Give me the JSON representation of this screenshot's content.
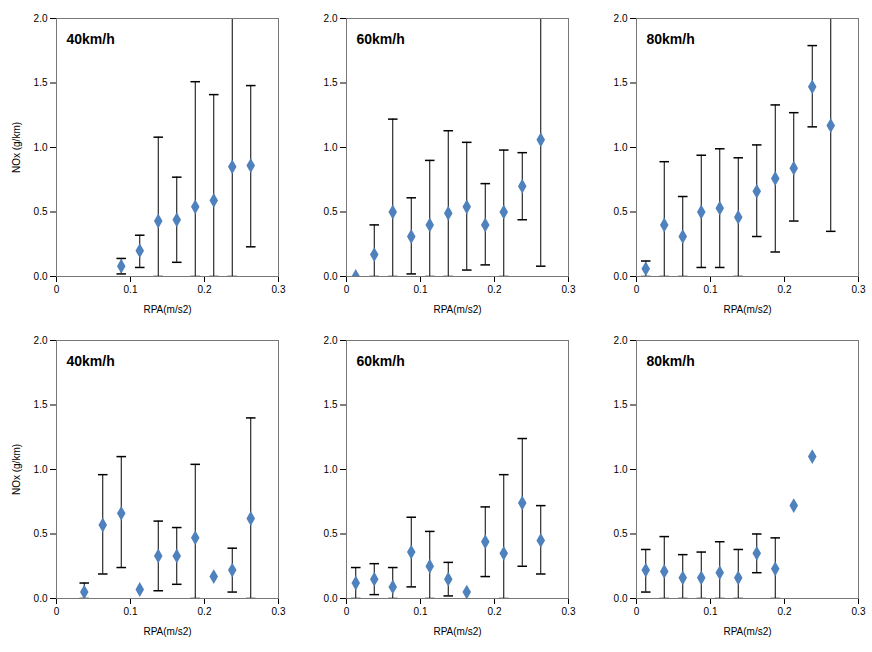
{
  "chart_data": [
    {
      "type": "scatter",
      "title": "40km/h",
      "xlabel": "RPA(m/s2)",
      "ylabel": "NOx (g/km)",
      "color": "#4f81bd",
      "marker": "diamond",
      "xlim": [
        0,
        0.3
      ],
      "xticks": [
        0,
        0.1,
        0.2,
        0.3
      ],
      "ylim": [
        0,
        2
      ],
      "yticks": [
        {
          "value": 0,
          "label": "0.0"
        },
        {
          "value": 0.5,
          "label": "0.5"
        },
        {
          "value": 1,
          "label": "1.0"
        },
        {
          "value": 1.5,
          "label": "1.5"
        },
        {
          "value": 2,
          "label": "2.0"
        }
      ],
      "x": [
        0.0875,
        0.1125,
        0.1375,
        0.1625,
        0.1875,
        0.2125,
        0.2375,
        0.2625
      ],
      "values": [
        0.08,
        0.2,
        0.43,
        0.44,
        0.54,
        0.59,
        0.85,
        0.86
      ],
      "error_low": [
        0.02,
        0.07,
        0,
        0.11,
        0,
        0,
        0,
        0.23
      ],
      "error_high": [
        0.14,
        0.32,
        1.08,
        0.77,
        1.51,
        1.41,
        2.2,
        1.48
      ]
    },
    {
      "type": "scatter",
      "title": "60km/h",
      "xlabel": "RPA(m/s2)",
      "color": "#4f81bd",
      "marker": "diamond",
      "xlim": [
        0,
        0.3
      ],
      "xticks": [
        0,
        0.1,
        0.2,
        0.3
      ],
      "ylim": [
        0,
        2
      ],
      "yticks": [
        {
          "value": 0,
          "label": "0.0"
        },
        {
          "value": 0.5,
          "label": "0.5"
        },
        {
          "value": 1,
          "label": "1.0"
        },
        {
          "value": 1.5,
          "label": "1.5"
        },
        {
          "value": 2,
          "label": "2.0"
        }
      ],
      "x": [
        0.0125,
        0.0375,
        0.0625,
        0.0875,
        0.1125,
        0.1375,
        0.1625,
        0.1875,
        0.2125,
        0.2375,
        0.2625
      ],
      "values": [
        0.0,
        0.17,
        0.5,
        0.31,
        0.4,
        0.49,
        0.54,
        0.4,
        0.5,
        0.7,
        1.06
      ],
      "error_low": [
        null,
        0,
        0,
        0.02,
        0,
        0,
        0.05,
        0.09,
        0,
        0.44,
        0.08
      ],
      "error_high": [
        null,
        0.4,
        1.22,
        0.61,
        0.9,
        1.13,
        1.04,
        0.72,
        0.98,
        0.96,
        2.2
      ]
    },
    {
      "type": "scatter",
      "title": "80km/h",
      "xlabel": "RPA(m/s2)",
      "color": "#4f81bd",
      "marker": "diamond",
      "xlim": [
        0,
        0.3
      ],
      "xticks": [
        0,
        0.1,
        0.2,
        0.3
      ],
      "ylim": [
        0,
        2
      ],
      "yticks": [
        {
          "value": 0,
          "label": "0.0"
        },
        {
          "value": 0.5,
          "label": "0.5"
        },
        {
          "value": 1,
          "label": "1.0"
        },
        {
          "value": 1.5,
          "label": "1.5"
        },
        {
          "value": 2,
          "label": "2.0"
        }
      ],
      "x": [
        0.0125,
        0.0375,
        0.0625,
        0.0875,
        0.1125,
        0.1375,
        0.1625,
        0.1875,
        0.2125,
        0.2375,
        0.2625
      ],
      "values": [
        0.06,
        0.4,
        0.31,
        0.5,
        0.53,
        0.46,
        0.66,
        0.76,
        0.84,
        1.47,
        1.17
      ],
      "error_low": [
        0,
        0,
        0,
        0.07,
        0.07,
        0,
        0.31,
        0.19,
        0.43,
        1.16,
        0.35
      ],
      "error_high": [
        0.12,
        0.89,
        0.62,
        0.94,
        0.99,
        0.92,
        1.02,
        1.33,
        1.27,
        1.79,
        2.2
      ]
    },
    {
      "type": "scatter",
      "title": "40km/h",
      "xlabel": "RPA(m/s2)",
      "ylabel": "NOx (g/km)",
      "color": "#4f81bd",
      "marker": "diamond",
      "xlim": [
        0,
        0.3
      ],
      "xticks": [
        0,
        0.1,
        0.2,
        0.3
      ],
      "ylim": [
        0,
        2
      ],
      "yticks": [
        {
          "value": 0,
          "label": "0.0"
        },
        {
          "value": 0.5,
          "label": "0.5"
        },
        {
          "value": 1,
          "label": "1.0"
        },
        {
          "value": 1.5,
          "label": "1.5"
        },
        {
          "value": 2,
          "label": "2.0"
        }
      ],
      "x": [
        0.0375,
        0.0625,
        0.0875,
        0.1125,
        0.1375,
        0.1625,
        0.1875,
        0.2125,
        0.2375,
        0.2625
      ],
      "values": [
        0.05,
        0.57,
        0.66,
        0.07,
        0.33,
        0.33,
        0.47,
        0.17,
        0.22,
        0.62
      ],
      "error_low": [
        0,
        0.19,
        0.24,
        null,
        0.06,
        0.11,
        0,
        null,
        0.05,
        0
      ],
      "error_high": [
        0.12,
        0.96,
        1.1,
        null,
        0.6,
        0.55,
        1.04,
        null,
        0.39,
        1.4
      ]
    },
    {
      "type": "scatter",
      "title": "60km/h",
      "xlabel": "RPA(m/s2)",
      "color": "#4f81bd",
      "marker": "diamond",
      "xlim": [
        0,
        0.3
      ],
      "xticks": [
        0,
        0.1,
        0.2,
        0.3
      ],
      "ylim": [
        0,
        2
      ],
      "yticks": [
        {
          "value": 0,
          "label": "0.0"
        },
        {
          "value": 0.5,
          "label": "0.5"
        },
        {
          "value": 1,
          "label": "1.0"
        },
        {
          "value": 1.5,
          "label": "1.5"
        },
        {
          "value": 2,
          "label": "2.0"
        }
      ],
      "x": [
        0.0125,
        0.0375,
        0.0625,
        0.0875,
        0.1125,
        0.1375,
        0.1625,
        0.1875,
        0.2125,
        0.2375,
        0.2625
      ],
      "values": [
        0.12,
        0.15,
        0.09,
        0.36,
        0.25,
        0.15,
        0.05,
        0.44,
        0.35,
        0.74,
        0.45
      ],
      "error_low": [
        0,
        0.03,
        0,
        0.09,
        0,
        0.02,
        null,
        0.17,
        0,
        0.25,
        0.19
      ],
      "error_high": [
        0.24,
        0.27,
        0.24,
        0.63,
        0.52,
        0.28,
        null,
        0.71,
        0.96,
        1.24,
        0.72
      ]
    },
    {
      "type": "scatter",
      "title": "80km/h",
      "xlabel": "RPA(m/s2)",
      "color": "#4f81bd",
      "marker": "diamond",
      "xlim": [
        0,
        0.3
      ],
      "xticks": [
        0,
        0.1,
        0.2,
        0.3
      ],
      "ylim": [
        0,
        2
      ],
      "yticks": [
        {
          "value": 0,
          "label": "0.0"
        },
        {
          "value": 0.5,
          "label": "0.5"
        },
        {
          "value": 1,
          "label": "1.0"
        },
        {
          "value": 1.5,
          "label": "1.5"
        },
        {
          "value": 2,
          "label": "2.0"
        }
      ],
      "x": [
        0.0125,
        0.0375,
        0.0625,
        0.0875,
        0.1125,
        0.1375,
        0.1625,
        0.1875,
        0.2125,
        0.2375
      ],
      "values": [
        0.22,
        0.21,
        0.16,
        0.16,
        0.2,
        0.16,
        0.35,
        0.23,
        0.72,
        1.1
      ],
      "error_low": [
        0.05,
        0,
        0,
        0,
        0,
        0,
        0.2,
        0,
        null,
        null
      ],
      "error_high": [
        0.38,
        0.48,
        0.34,
        0.36,
        0.44,
        0.38,
        0.5,
        0.47,
        null,
        null
      ]
    }
  ]
}
